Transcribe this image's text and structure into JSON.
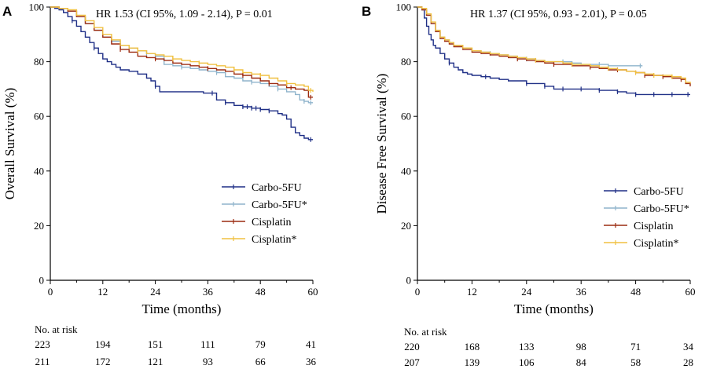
{
  "figure": {
    "panel_a_letter": "A",
    "panel_b_letter": "B",
    "risk_title": "No. at risk"
  },
  "chart_data": [
    {
      "type": "line",
      "step": true,
      "title": "",
      "hr_text": "HR 1.53 (CI 95%,  1.09 - 2.14), P = 0.01",
      "xlabel": "Time (months)",
      "ylabel": "Overall Survival (%)",
      "xlim": [
        0,
        60
      ],
      "ylim": [
        0,
        100
      ],
      "xticks": [
        0,
        12,
        24,
        36,
        48,
        60
      ],
      "yticks": [
        0,
        20,
        40,
        60,
        80,
        100
      ],
      "legend_position": "center-right",
      "series": [
        {
          "name": "Carbo-5FU",
          "color": "#1f2f86",
          "x": [
            0,
            1,
            2,
            3,
            4,
            5,
            6,
            7,
            8,
            9,
            10,
            11,
            12,
            13,
            14,
            15,
            16,
            18,
            20,
            22,
            23,
            24,
            25,
            30,
            35,
            38,
            40,
            42,
            44,
            46,
            48,
            50,
            52,
            53,
            54,
            55,
            56,
            57,
            58,
            59,
            60
          ],
          "y": [
            100,
            99.5,
            99,
            98,
            96.5,
            95,
            93,
            91,
            89,
            87,
            85,
            83,
            81,
            80,
            79,
            78,
            77,
            76.5,
            75.5,
            74,
            73,
            71,
            69,
            69,
            68.5,
            66,
            65,
            64,
            63.5,
            63,
            62.5,
            62,
            61,
            60.5,
            59,
            56,
            54,
            53,
            52,
            51.5,
            51.5
          ],
          "censor_x": [
            5,
            10,
            24,
            37,
            40,
            44,
            45,
            46,
            47,
            48,
            50,
            59.5
          ]
        },
        {
          "name": "Carbo-5FU*",
          "color": "#8fb4cc",
          "x": [
            0,
            2,
            4,
            6,
            8,
            10,
            12,
            14,
            16,
            18,
            20,
            22,
            24,
            26,
            28,
            30,
            32,
            34,
            36,
            38,
            40,
            42,
            44,
            46,
            48,
            50,
            52,
            54,
            56,
            57,
            58,
            59,
            60
          ],
          "y": [
            100,
            99.5,
            98.5,
            96.5,
            94,
            91.5,
            89,
            87.5,
            86,
            85,
            84,
            83,
            82,
            79,
            78.5,
            78,
            77.5,
            77,
            76.5,
            76,
            74.5,
            74,
            73,
            72.5,
            72,
            71,
            70,
            69,
            68,
            66,
            65.5,
            65,
            65
          ],
          "censor_x": [
            14,
            22,
            30,
            38,
            46,
            52,
            58,
            59.5
          ]
        },
        {
          "name": "Cisplatin",
          "color": "#9c2b10",
          "x": [
            0,
            2,
            4,
            6,
            8,
            10,
            12,
            14,
            16,
            18,
            20,
            22,
            24,
            26,
            28,
            30,
            32,
            34,
            36,
            38,
            40,
            42,
            44,
            46,
            48,
            50,
            52,
            54,
            56,
            58,
            59,
            60
          ],
          "y": [
            100,
            99.5,
            98.5,
            96.5,
            94,
            91.5,
            89,
            86.5,
            84.5,
            83.5,
            82,
            81.5,
            81,
            80.5,
            79.5,
            79,
            78.5,
            78,
            77.5,
            77,
            76.5,
            75.5,
            75,
            74,
            73,
            72,
            71.5,
            70.5,
            70,
            69.5,
            67,
            67
          ],
          "censor_x": [
            16,
            24,
            36,
            44,
            50,
            55,
            59.5
          ]
        },
        {
          "name": "Cisplatin*",
          "color": "#f0c040",
          "x": [
            0,
            2,
            4,
            6,
            8,
            10,
            12,
            14,
            16,
            18,
            20,
            22,
            24,
            26,
            28,
            30,
            32,
            34,
            36,
            38,
            40,
            42,
            44,
            46,
            48,
            50,
            52,
            54,
            56,
            58,
            59,
            60
          ],
          "y": [
            100,
            99.5,
            99,
            97,
            95,
            92.5,
            90,
            88,
            86,
            85,
            84,
            83,
            82.5,
            82,
            81,
            80.5,
            80,
            79.5,
            79,
            78.5,
            78,
            77,
            76,
            75.5,
            75,
            74,
            73,
            72,
            71.5,
            71,
            69.5,
            69
          ],
          "censor_x": [
            20,
            28,
            34,
            42,
            48,
            54,
            59.5
          ]
        }
      ],
      "at_risk": {
        "times": [
          0,
          12,
          24,
          36,
          48,
          60
        ],
        "rows": [
          [
            "223",
            "194",
            "151",
            "111",
            "79",
            "41"
          ],
          [
            "211",
            "172",
            "121",
            "93",
            "66",
            "36"
          ]
        ]
      }
    },
    {
      "type": "line",
      "step": true,
      "title": "",
      "hr_text": "HR 1.37 (CI 95%, 0.93 - 2.01), P = 0.05",
      "xlabel": "Time (months)",
      "ylabel": "Disease Free Survival (%)",
      "xlim": [
        0,
        60
      ],
      "ylim": [
        0,
        100
      ],
      "xticks": [
        0,
        12,
        24,
        36,
        48,
        60
      ],
      "yticks": [
        0,
        20,
        40,
        60,
        80,
        100
      ],
      "legend_position": "center-right",
      "series": [
        {
          "name": "Carbo-5FU",
          "color": "#1f2f86",
          "x": [
            0,
            1,
            1.5,
            2,
            2.5,
            3,
            3.5,
            4,
            5,
            6,
            7,
            8,
            9,
            10,
            11,
            12,
            14,
            16,
            18,
            20,
            24,
            28,
            30,
            36,
            40,
            44,
            46,
            48,
            52,
            56,
            60
          ],
          "y": [
            100,
            99,
            96,
            93,
            90,
            88,
            86,
            85,
            83,
            81,
            79.5,
            78,
            77,
            76,
            75.5,
            75,
            74.5,
            74,
            73.5,
            73,
            72,
            71,
            70,
            70,
            69.5,
            69,
            68.5,
            68,
            68,
            68,
            68
          ],
          "censor_x": [
            7,
            15,
            24,
            28,
            32,
            36,
            40,
            44,
            48,
            52,
            56,
            59.5
          ]
        },
        {
          "name": "Carbo-5FU*",
          "color": "#8fb4cc",
          "x": [
            0,
            1,
            2,
            3,
            4,
            5,
            6,
            7,
            8,
            10,
            12,
            14,
            16,
            18,
            20,
            22,
            24,
            26,
            28,
            30,
            32,
            34,
            36,
            38,
            40,
            42,
            44,
            46,
            48,
            49.5
          ],
          "y": [
            100,
            99,
            97,
            94,
            91,
            89,
            88,
            87,
            86,
            85,
            84,
            83.5,
            83,
            82.5,
            82,
            81.5,
            81,
            80.5,
            80,
            80,
            80,
            79.5,
            79,
            79,
            79,
            78.5,
            78.5,
            78.5,
            78.5,
            78.5
          ],
          "censor_x": [
            16,
            24,
            32,
            40,
            49
          ]
        },
        {
          "name": "Cisplatin",
          "color": "#9c2b10",
          "x": [
            0,
            1,
            2,
            3,
            4,
            5,
            6,
            7,
            8,
            10,
            12,
            14,
            16,
            18,
            20,
            22,
            24,
            26,
            28,
            30,
            32,
            34,
            36,
            38,
            40,
            42,
            44,
            46,
            48,
            50,
            52,
            54,
            56,
            58,
            59,
            60
          ],
          "y": [
            100,
            99,
            97,
            94,
            91,
            88.5,
            87.5,
            86.5,
            85.5,
            84.5,
            83.5,
            83,
            82.5,
            82,
            81.5,
            81,
            80.5,
            80,
            79.5,
            79,
            79,
            78.5,
            78.5,
            78,
            77.5,
            77,
            77,
            76.5,
            76,
            75,
            75,
            74.5,
            74,
            73.5,
            72,
            71
          ],
          "censor_x": [
            22,
            30,
            38,
            44,
            50,
            54,
            58
          ]
        },
        {
          "name": "Cisplatin*",
          "color": "#f0c040",
          "x": [
            0,
            1,
            2,
            3,
            4,
            5,
            6,
            7,
            8,
            10,
            12,
            14,
            16,
            18,
            20,
            22,
            24,
            26,
            28,
            30,
            32,
            34,
            36,
            38,
            40,
            42,
            44,
            46,
            48,
            50,
            52,
            54,
            56,
            58,
            59,
            60
          ],
          "y": [
            100,
            99.5,
            97.5,
            94.5,
            91.5,
            89,
            88,
            87,
            86,
            85,
            84,
            83.5,
            83,
            82.5,
            82,
            81.5,
            81,
            80.5,
            80,
            80,
            79.5,
            79,
            79,
            78.5,
            78,
            77.5,
            77,
            76.5,
            76,
            75.5,
            75,
            75,
            74.5,
            74,
            72.5,
            72
          ],
          "censor_x": [
            26,
            34,
            42,
            48,
            52,
            56
          ]
        }
      ],
      "at_risk": {
        "times": [
          0,
          12,
          24,
          36,
          48,
          60
        ],
        "rows": [
          [
            "220",
            "168",
            "133",
            "98",
            "71",
            "34"
          ],
          [
            "207",
            "139",
            "106",
            "84",
            "58",
            "28"
          ]
        ]
      }
    }
  ]
}
